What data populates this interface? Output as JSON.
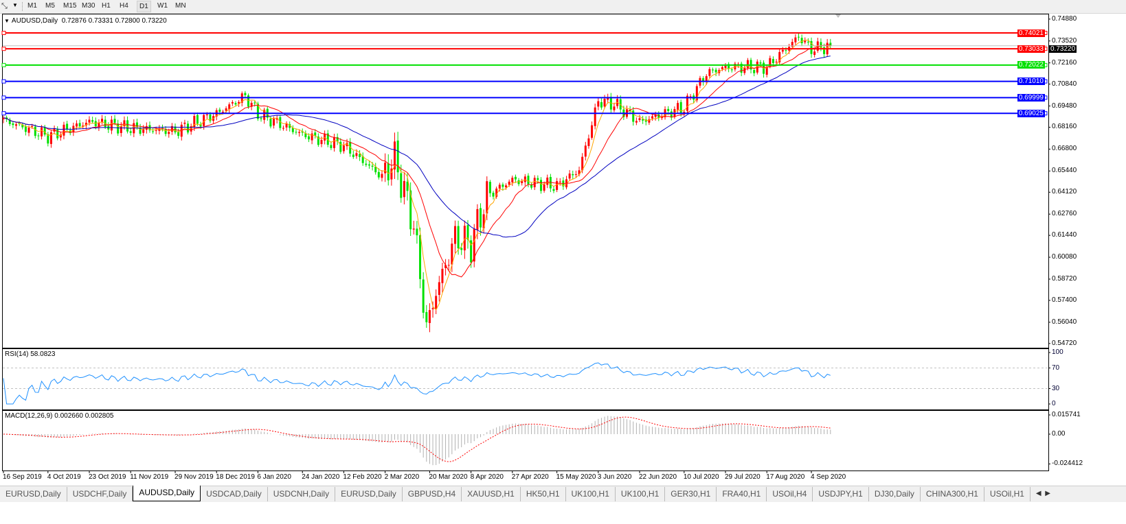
{
  "toolbar": {
    "tool_icon": "crosshair-tool-icon",
    "timeframes": [
      "M1",
      "M5",
      "M15",
      "M30",
      "H1",
      "H4",
      "D1",
      "W1",
      "MN"
    ],
    "active_timeframe": "D1"
  },
  "chart": {
    "title": "AUDUSD,Daily",
    "ohlc": "0.72876 0.73331 0.72800 0.73220",
    "current_price": "0.73220",
    "rsi_label": "RSI(14) 58.0823",
    "macd_label": "MACD(12,26,9) 0.002660 0.002805"
  },
  "chart_data": {
    "type": "candlestick",
    "symbol": "AUDUSD",
    "timeframe": "Daily",
    "ylim": [
      0.5472,
      0.7488
    ],
    "yticks": [
      "0.74880",
      "0.73520",
      "0.72160",
      "0.70840",
      "0.69480",
      "0.68160",
      "0.66800",
      "0.65440",
      "0.64120",
      "0.62760",
      "0.61440",
      "0.60080",
      "0.58720",
      "0.57400",
      "0.56040",
      "0.54720"
    ],
    "xticks": [
      "16 Sep 2019",
      "4 Oct 2019",
      "23 Oct 2019",
      "11 Nov 2019",
      "29 Nov 2019",
      "18 Dec 2019",
      "6 Jan 2020",
      "24 Jan 2020",
      "12 Feb 2020",
      "2 Mar 2020",
      "20 Mar 2020",
      "8 Apr 2020",
      "27 Apr 2020",
      "15 May 2020",
      "3 Jun 2020",
      "22 Jun 2020",
      "10 Jul 2020",
      "29 Jul 2020",
      "17 Aug 2020",
      "4 Sep 2020"
    ],
    "approx_closes": [
      [
        "2019-09-16",
        0.686
      ],
      [
        "2019-10-04",
        0.676
      ],
      [
        "2019-10-23",
        0.685
      ],
      [
        "2019-11-11",
        0.681
      ],
      [
        "2019-11-29",
        0.679
      ],
      [
        "2019-12-18",
        0.69
      ],
      [
        "2019-12-31",
        0.701
      ],
      [
        "2020-01-06",
        0.69
      ],
      [
        "2020-01-24",
        0.677
      ],
      [
        "2020-02-12",
        0.67
      ],
      [
        "2020-02-28",
        0.651
      ],
      [
        "2020-03-05",
        0.662
      ],
      [
        "2020-03-13",
        0.621
      ],
      [
        "2020-03-19",
        0.557
      ],
      [
        "2020-03-24",
        0.579
      ],
      [
        "2020-04-01",
        0.613
      ],
      [
        "2020-04-08",
        0.609
      ],
      [
        "2020-04-15",
        0.639
      ],
      [
        "2020-04-27",
        0.649
      ],
      [
        "2020-05-15",
        0.645
      ],
      [
        "2020-05-26",
        0.655
      ],
      [
        "2020-06-03",
        0.698
      ],
      [
        "2020-06-10",
        0.696
      ],
      [
        "2020-06-22",
        0.685
      ],
      [
        "2020-07-10",
        0.694
      ],
      [
        "2020-07-21",
        0.715
      ],
      [
        "2020-07-29",
        0.719
      ],
      [
        "2020-08-17",
        0.719
      ],
      [
        "2020-08-31",
        0.738
      ],
      [
        "2020-09-04",
        0.73
      ],
      [
        "2020-09-14",
        0.7322
      ]
    ],
    "levels": [
      {
        "value": "0.74021",
        "color": "#ff0000"
      },
      {
        "value": "0.73033",
        "color": "#ff0000"
      },
      {
        "value": "0.72022",
        "color": "#00e000"
      },
      {
        "value": "0.71010",
        "color": "#0000ff"
      },
      {
        "value": "0.69999",
        "color": "#0000ff"
      },
      {
        "value": "0.69025",
        "color": "#0000ff"
      }
    ],
    "up_color": "#ff0000",
    "down_color": "#00e000",
    "ma_colors": [
      "#ffa500",
      "#ff0000",
      "#0000c0"
    ],
    "rsi": {
      "yticks": [
        "100",
        "70",
        "30",
        "0"
      ],
      "levels": [
        70,
        30
      ],
      "color": "#1e90ff"
    },
    "macd": {
      "yticks": [
        "0.015741",
        "0.00",
        "-0.024412"
      ],
      "histogram_color": "#b0b0b0",
      "signal_color": "#ff0000"
    }
  },
  "tabs": {
    "items": [
      "EURUSD,Daily",
      "USDCHF,Daily",
      "AUDUSD,Daily",
      "USDCAD,Daily",
      "USDCNH,Daily",
      "EURUSD,Daily",
      "GBPUSD,H4",
      "XAUUSD,H1",
      "HK50,H1",
      "UK100,H1",
      "UK100,H1",
      "GER30,H1",
      "FRA40,H1",
      "USOil,H4",
      "USDJPY,H1",
      "DJ30,Daily",
      "CHINA300,H1",
      "USOil,H1"
    ],
    "active": 2,
    "prev_icon": "scroll-left-icon",
    "next_icon": "scroll-right-icon"
  }
}
